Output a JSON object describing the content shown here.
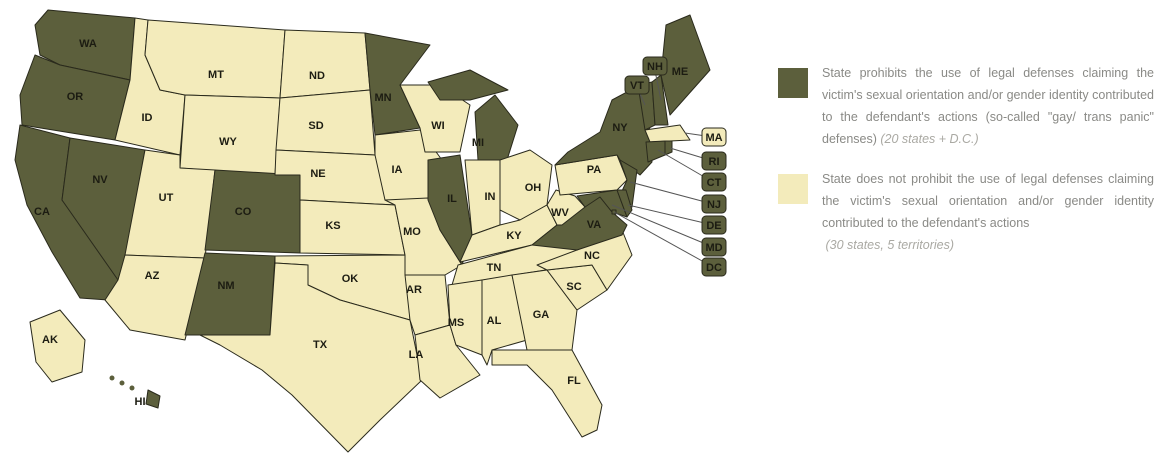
{
  "colors": {
    "prohibits": "#5c5f3c",
    "does_not_prohibit": "#f3ebbb",
    "border": "#2a2a1c"
  },
  "map": {
    "states": [
      {
        "abbr": "WA",
        "prohibits": true
      },
      {
        "abbr": "OR",
        "prohibits": true
      },
      {
        "abbr": "CA",
        "prohibits": true
      },
      {
        "abbr": "NV",
        "prohibits": true
      },
      {
        "abbr": "ID",
        "prohibits": false
      },
      {
        "abbr": "MT",
        "prohibits": false
      },
      {
        "abbr": "WY",
        "prohibits": false
      },
      {
        "abbr": "UT",
        "prohibits": false
      },
      {
        "abbr": "AZ",
        "prohibits": false
      },
      {
        "abbr": "CO",
        "prohibits": true
      },
      {
        "abbr": "NM",
        "prohibits": true
      },
      {
        "abbr": "ND",
        "prohibits": false
      },
      {
        "abbr": "SD",
        "prohibits": false
      },
      {
        "abbr": "NE",
        "prohibits": false
      },
      {
        "abbr": "KS",
        "prohibits": false
      },
      {
        "abbr": "OK",
        "prohibits": false
      },
      {
        "abbr": "TX",
        "prohibits": false
      },
      {
        "abbr": "MN",
        "prohibits": true
      },
      {
        "abbr": "IA",
        "prohibits": false
      },
      {
        "abbr": "MO",
        "prohibits": false
      },
      {
        "abbr": "AR",
        "prohibits": false
      },
      {
        "abbr": "LA",
        "prohibits": false
      },
      {
        "abbr": "WI",
        "prohibits": false
      },
      {
        "abbr": "IL",
        "prohibits": true
      },
      {
        "abbr": "MI",
        "prohibits": true
      },
      {
        "abbr": "IN",
        "prohibits": false
      },
      {
        "abbr": "OH",
        "prohibits": false
      },
      {
        "abbr": "KY",
        "prohibits": false
      },
      {
        "abbr": "TN",
        "prohibits": false
      },
      {
        "abbr": "MS",
        "prohibits": false
      },
      {
        "abbr": "AL",
        "prohibits": false
      },
      {
        "abbr": "GA",
        "prohibits": false
      },
      {
        "abbr": "FL",
        "prohibits": false
      },
      {
        "abbr": "SC",
        "prohibits": false
      },
      {
        "abbr": "NC",
        "prohibits": false
      },
      {
        "abbr": "VA",
        "prohibits": true
      },
      {
        "abbr": "WV",
        "prohibits": false
      },
      {
        "abbr": "PA",
        "prohibits": false
      },
      {
        "abbr": "NY",
        "prohibits": true
      },
      {
        "abbr": "NJ",
        "prohibits": true
      },
      {
        "abbr": "MD",
        "prohibits": true
      },
      {
        "abbr": "DE",
        "prohibits": true
      },
      {
        "abbr": "VT",
        "prohibits": true
      },
      {
        "abbr": "NH",
        "prohibits": true
      },
      {
        "abbr": "ME",
        "prohibits": true
      },
      {
        "abbr": "MA",
        "prohibits": false
      },
      {
        "abbr": "CT",
        "prohibits": true
      },
      {
        "abbr": "RI",
        "prohibits": true
      },
      {
        "abbr": "AK",
        "prohibits": false
      },
      {
        "abbr": "HI",
        "prohibits": true
      },
      {
        "abbr": "DC",
        "prohibits": true
      }
    ]
  },
  "legend": {
    "prohibits": {
      "text": "State prohibits the use of legal defenses claiming the victim's sexual orientation and/or gender identity contributed to the defendant's actions (so-called \"gay/ trans panic\" defenses)",
      "note": "(20 states + D.C.)"
    },
    "does_not_prohibit": {
      "text": "State does not prohibit the use of legal defenses claiming the victim's sexual orientation and/or gender identity contributed to the defendant's actions",
      "note": "(30 states, 5 territories)"
    }
  }
}
